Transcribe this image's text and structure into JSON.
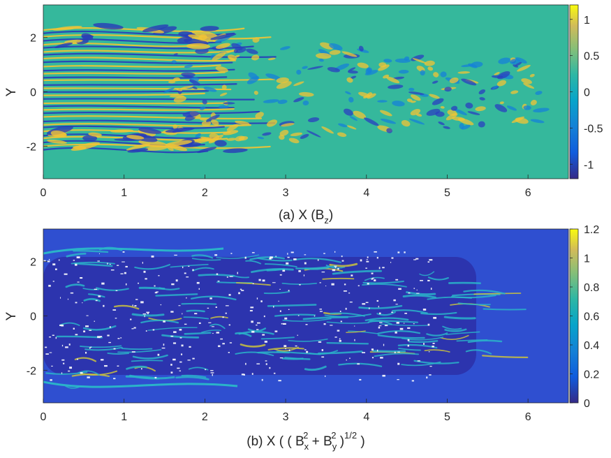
{
  "chart_data": [
    {
      "type": "heatmap",
      "title": "(a) X (Bz)",
      "xlabel": "X",
      "ylabel": "Y",
      "xlim": [
        0,
        6.5
      ],
      "ylim": [
        -3.2,
        3.2
      ],
      "xticks": [
        "0",
        "1",
        "2",
        "3",
        "4",
        "5",
        "6"
      ],
      "yticks": [
        "2",
        "0",
        "-2"
      ],
      "colorbar": {
        "range": [
          -1.2,
          1.2
        ],
        "ticks": [
          "1",
          "0.5",
          "0",
          "-0.5",
          "-1"
        ],
        "colormap": "parula"
      },
      "background_value": 0,
      "caption": {
        "prefix": "(a) X (B",
        "sub": "z",
        "suffix": ")"
      }
    },
    {
      "type": "heatmap",
      "title": "(b) X ( ( Bx2 + By2 )1/2 )",
      "xlabel": "X",
      "ylabel": "Y",
      "xlim": [
        0,
        6.5
      ],
      "ylim": [
        -3.2,
        3.2
      ],
      "xticks": [
        "0",
        "1",
        "2",
        "3",
        "4",
        "5",
        "6"
      ],
      "yticks": [
        "2",
        "0",
        "-2"
      ],
      "colorbar": {
        "range": [
          0,
          1.2
        ],
        "ticks": [
          "1.2",
          "1",
          "0.8",
          "0.6",
          "0.4",
          "0.2",
          "0"
        ],
        "colormap": "parula"
      },
      "background_value": 0.15,
      "caption": {
        "p1": "(b) X ( ( B",
        "s1": "x",
        "e1": "2",
        "p2": " + B",
        "s2": "y",
        "e2": "2",
        "p3": " )",
        "e3": "1/2",
        "p4": " )"
      }
    }
  ],
  "colors": {
    "parula_low": "#352a87",
    "parula_mid": "#2ab5b5",
    "parula_high": "#f9fb0e",
    "bg_a": "#35b89c",
    "bg_b": "#2f4fd0"
  }
}
